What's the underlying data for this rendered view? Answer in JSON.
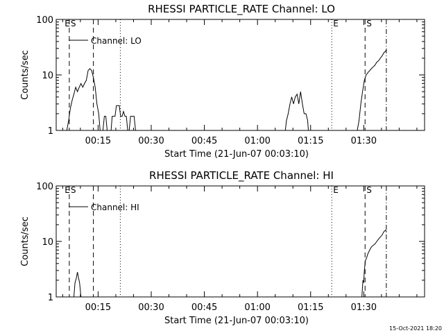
{
  "chart_data": [
    {
      "type": "line",
      "title": "RHESSI PARTICLE_RATE Channel: LO",
      "xlabel": "Start Time (21-Jun-07 00:03:10)",
      "ylabel": "Counts/sec",
      "y_scale": "log",
      "ylim": [
        1,
        100
      ],
      "y_ticks": [
        "1",
        "10",
        "100"
      ],
      "xlim": [
        0,
        104
      ],
      "x_unit": "minutes after 00:03:10",
      "x_ticks": [
        {
          "label": "00:15",
          "minutes": 11.83
        },
        {
          "label": "00:30",
          "minutes": 26.83
        },
        {
          "label": "00:45",
          "minutes": 41.83
        },
        {
          "label": "01:00",
          "minutes": 56.83
        },
        {
          "label": "01:15",
          "minutes": 71.83
        },
        {
          "label": "01:30",
          "minutes": 86.83
        }
      ],
      "legend": "Channel: LO",
      "markers": [
        {
          "label": "E",
          "minutes": 2.0,
          "style": "none"
        },
        {
          "label": "S",
          "minutes": 3.7,
          "style": "dashed"
        },
        {
          "label": "",
          "minutes": 10.5,
          "style": "dashed"
        },
        {
          "label": "",
          "minutes": 18.1,
          "style": "dotted"
        },
        {
          "label": "E",
          "minutes": 77.8,
          "style": "dotted"
        },
        {
          "label": "S",
          "minutes": 87.2,
          "style": "dashed"
        },
        {
          "label": "",
          "minutes": 93.2,
          "style": "dashdot"
        }
      ],
      "series": [
        {
          "name": "Channel: LO",
          "segments": [
            [
              [
                3.0,
                1
              ],
              [
                3.5,
                1.5
              ],
              [
                4.0,
                2.5
              ],
              [
                4.5,
                3.5
              ],
              [
                5.0,
                4.5
              ],
              [
                5.5,
                6
              ],
              [
                6.0,
                5
              ],
              [
                6.5,
                6
              ],
              [
                7.0,
                7
              ],
              [
                7.5,
                6
              ],
              [
                8.0,
                7
              ],
              [
                8.5,
                8
              ],
              [
                9.0,
                12
              ],
              [
                9.5,
                13
              ],
              [
                10.0,
                12
              ],
              [
                10.5,
                9
              ],
              [
                11.0,
                6
              ],
              [
                11.5,
                3
              ],
              [
                12.0,
                2
              ],
              [
                12.4,
                1
              ]
            ],
            [
              [
                13.2,
                1
              ],
              [
                13.6,
                1.8
              ],
              [
                14.0,
                1.8
              ],
              [
                14.4,
                1
              ]
            ],
            [
              [
                15.5,
                1
              ],
              [
                15.8,
                1.8
              ],
              [
                16.2,
                1.8
              ],
              [
                16.6,
                1.8
              ],
              [
                17.0,
                2.8
              ],
              [
                17.4,
                2.8
              ],
              [
                17.8,
                2.8
              ],
              [
                18.2,
                1.8
              ],
              [
                18.6,
                1.8
              ],
              [
                19.0,
                2.2
              ],
              [
                19.4,
                1.8
              ],
              [
                19.8,
                1.8
              ],
              [
                20.2,
                1.0
              ]
            ],
            [
              [
                20.6,
                1
              ],
              [
                21.0,
                1.8
              ],
              [
                21.5,
                1.8
              ],
              [
                22.0,
                1.8
              ],
              [
                22.4,
                1
              ]
            ],
            [
              [
                64.7,
                1
              ],
              [
                65.0,
                1.5
              ],
              [
                65.5,
                2.0
              ],
              [
                66.0,
                3.0
              ],
              [
                66.5,
                4.0
              ],
              [
                67.0,
                3.0
              ],
              [
                67.5,
                4.0
              ],
              [
                68.0,
                4.5
              ],
              [
                68.5,
                3.0
              ],
              [
                69.0,
                5.0
              ],
              [
                69.5,
                3.0
              ],
              [
                70.0,
                2.0
              ],
              [
                70.5,
                2.0
              ],
              [
                71.0,
                1.5
              ],
              [
                71.2,
                1
              ]
            ],
            [
              [
                85.0,
                1
              ],
              [
                85.5,
                1.5
              ],
              [
                86.0,
                3.0
              ],
              [
                86.5,
                5.0
              ],
              [
                87.0,
                8.0
              ],
              [
                87.5,
                10
              ],
              [
                88.0,
                11
              ],
              [
                88.5,
                12
              ],
              [
                89.0,
                13
              ],
              [
                89.5,
                14
              ],
              [
                90.0,
                15
              ],
              [
                90.5,
                17
              ],
              [
                91.0,
                18
              ],
              [
                91.5,
                20
              ],
              [
                92.0,
                22
              ],
              [
                92.5,
                25
              ],
              [
                93.0,
                27
              ],
              [
                93.3,
                28
              ]
            ]
          ]
        }
      ]
    },
    {
      "type": "line",
      "title": "RHESSI PARTICLE_RATE Channel: HI",
      "xlabel": "Start Time (21-Jun-07 00:03:10)",
      "ylabel": "Counts/sec",
      "y_scale": "log",
      "ylim": [
        1,
        100
      ],
      "y_ticks": [
        "1",
        "10",
        "100"
      ],
      "xlim": [
        0,
        104
      ],
      "x_unit": "minutes after 00:03:10",
      "x_ticks": [
        {
          "label": "00:15",
          "minutes": 11.83
        },
        {
          "label": "00:30",
          "minutes": 26.83
        },
        {
          "label": "00:45",
          "minutes": 41.83
        },
        {
          "label": "01:00",
          "minutes": 56.83
        },
        {
          "label": "01:15",
          "minutes": 71.83
        },
        {
          "label": "01:30",
          "minutes": 86.83
        }
      ],
      "legend": "Channel: HI",
      "markers": [
        {
          "label": "E",
          "minutes": 2.0,
          "style": "none"
        },
        {
          "label": "S",
          "minutes": 3.7,
          "style": "dashed"
        },
        {
          "label": "",
          "minutes": 10.5,
          "style": "dashed"
        },
        {
          "label": "",
          "minutes": 18.1,
          "style": "dotted"
        },
        {
          "label": "E",
          "minutes": 77.8,
          "style": "dotted"
        },
        {
          "label": "S",
          "minutes": 87.2,
          "style": "dashed"
        },
        {
          "label": "",
          "minutes": 93.2,
          "style": "dashdot"
        }
      ],
      "series": [
        {
          "name": "Channel: HI",
          "segments": [
            [
              [
                5.0,
                1
              ],
              [
                5.3,
                1.8
              ],
              [
                5.7,
                2.2
              ],
              [
                6.0,
                2.8
              ],
              [
                6.3,
                2.2
              ],
              [
                6.6,
                1.8
              ],
              [
                7.0,
                1.0
              ]
            ],
            [
              [
                86.3,
                1
              ],
              [
                86.6,
                2.0
              ],
              [
                86.8,
                1.8
              ],
              [
                87.0,
                3.0
              ],
              [
                87.3,
                4.5
              ],
              [
                87.6,
                5.0
              ],
              [
                88.0,
                6.0
              ],
              [
                88.5,
                7.0
              ],
              [
                89.0,
                8.0
              ],
              [
                89.5,
                8.5
              ],
              [
                90.0,
                9.0
              ],
              [
                90.5,
                10
              ],
              [
                91.0,
                11
              ],
              [
                91.5,
                12
              ],
              [
                92.0,
                13
              ],
              [
                92.5,
                15
              ],
              [
                93.0,
                16
              ],
              [
                93.2,
                15
              ]
            ]
          ]
        }
      ]
    }
  ],
  "footer": {
    "timestamp": "15-Oct-2021 18:20"
  }
}
